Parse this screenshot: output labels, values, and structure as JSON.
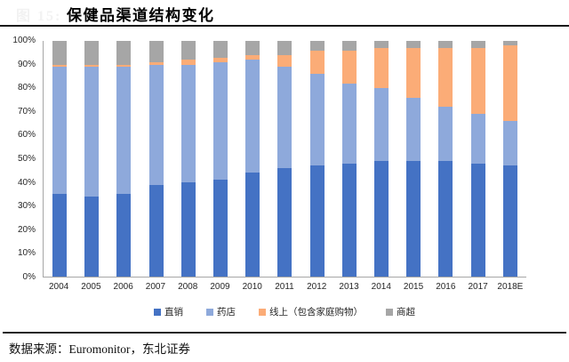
{
  "figure_label": "图 15:",
  "header": {
    "title": "保健品渠道结构变化"
  },
  "source": "数据来源：Euromonitor，东北证券",
  "colors": {
    "direct_sales": "#4472C4",
    "pharmacy": "#8EA9DB",
    "online": "#FBAC77",
    "supermarket": "#A6A6A6",
    "axis_line": "#A6A6A6",
    "title_rule": "#1A1A1A"
  },
  "chart_data": {
    "type": "bar",
    "stacked": true,
    "stacked_to_100_percent": true,
    "title": "保健品渠道结构变化",
    "xlabel": "",
    "ylabel": "",
    "ylim": [
      0,
      100
    ],
    "grid": false,
    "legend_position": "bottom",
    "y_ticks": [
      "0%",
      "10%",
      "20%",
      "30%",
      "40%",
      "50%",
      "60%",
      "70%",
      "80%",
      "90%",
      "100%"
    ],
    "categories": [
      "2004",
      "2005",
      "2006",
      "2007",
      "2008",
      "2009",
      "2010",
      "2011",
      "2012",
      "2013",
      "2014",
      "2015",
      "2016",
      "2017",
      "2018E"
    ],
    "series": [
      {
        "name": "直销",
        "color": "#4472C4",
        "values": [
          35,
          34,
          35,
          39,
          40,
          41,
          44,
          46,
          47,
          48,
          49,
          49,
          49,
          48,
          47
        ]
      },
      {
        "name": "药店",
        "color": "#8EA9DB",
        "values": [
          54,
          55,
          54,
          51,
          50,
          50,
          48,
          43,
          39,
          34,
          31,
          27,
          23,
          21,
          19
        ]
      },
      {
        "name": "线上（包含家庭购物）",
        "color": "#FBAC77",
        "values": [
          1,
          1,
          1,
          1,
          2,
          2,
          2,
          5,
          10,
          14,
          17,
          21,
          25,
          28,
          32
        ]
      },
      {
        "name": "商超",
        "color": "#A6A6A6",
        "values": [
          10,
          10,
          10,
          9,
          8,
          7,
          6,
          6,
          4,
          4,
          3,
          3,
          3,
          3,
          2
        ]
      }
    ]
  }
}
